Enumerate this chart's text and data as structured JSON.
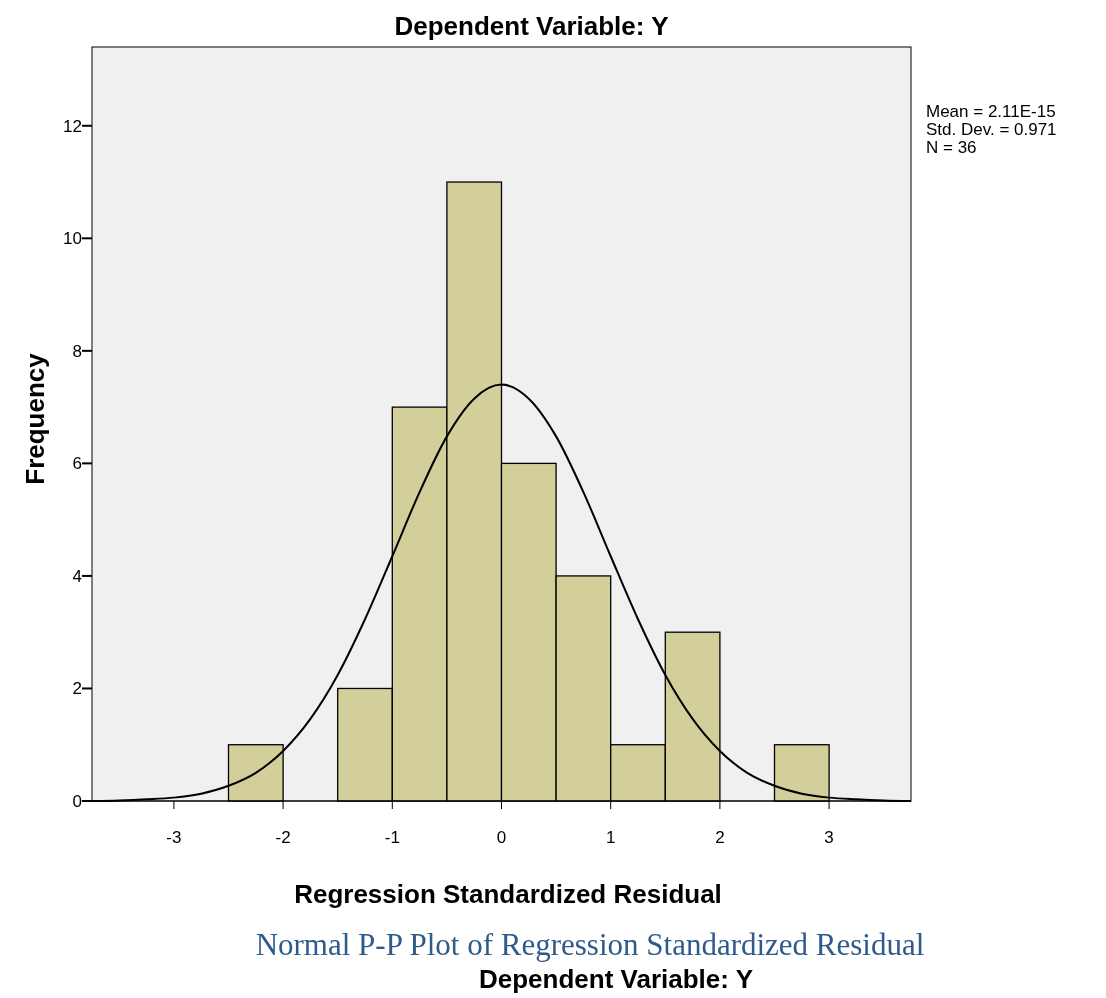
{
  "chart_data": {
    "type": "histogram",
    "title": "Dependent Variable: Y",
    "xlabel": "Regression Standardized Residual",
    "ylabel": "Frequency",
    "bins": [
      -2.5,
      -2,
      -1.5,
      -1,
      -0.5,
      0,
      0.5,
      1,
      1.5,
      2,
      2.5,
      3
    ],
    "values": [
      1,
      0,
      2,
      7,
      11,
      6,
      4,
      1,
      3,
      0,
      1
    ],
    "color": "#d3cf9a",
    "series": [
      {
        "type": "line",
        "color": "#000000",
        "x": [
          -3.75,
          -3.5,
          -3.25,
          -3,
          -2.75,
          -2.5,
          -2.25,
          -2,
          -1.75,
          -1.5,
          -1.25,
          -1,
          -0.75,
          -0.5,
          -0.25,
          0,
          0.25,
          0.5,
          0.75,
          1,
          1.25,
          1.5,
          1.75,
          2,
          2.25,
          2.5,
          2.75,
          3,
          3.25,
          3.5,
          3.75
        ],
        "values": [
          0,
          0.01,
          0.03,
          0.06,
          0.13,
          0.27,
          0.5,
          0.89,
          1.46,
          2.24,
          3.23,
          4.35,
          5.49,
          6.48,
          7.15,
          7.4,
          7.15,
          6.48,
          5.49,
          4.35,
          3.23,
          2.24,
          1.46,
          0.89,
          0.5,
          0.27,
          0.13,
          0.06,
          0.03,
          0.01,
          0
        ]
      }
    ],
    "xlim": [
      -3.75,
      3.75
    ],
    "xticks": [
      -3,
      -2,
      -1,
      0,
      1,
      2,
      3
    ],
    "ylim": [
      0,
      13.4
    ],
    "yticks": [
      0,
      2,
      4,
      6,
      8,
      10,
      12
    ],
    "grid": false,
    "annotations": [
      "Mean = 2.11E-15",
      "Std. Dev. = 0.971",
      "N = 36",
      "Normal P-P Plot of Regression Standardized Residual",
      "Dependent Variable: Y"
    ]
  }
}
